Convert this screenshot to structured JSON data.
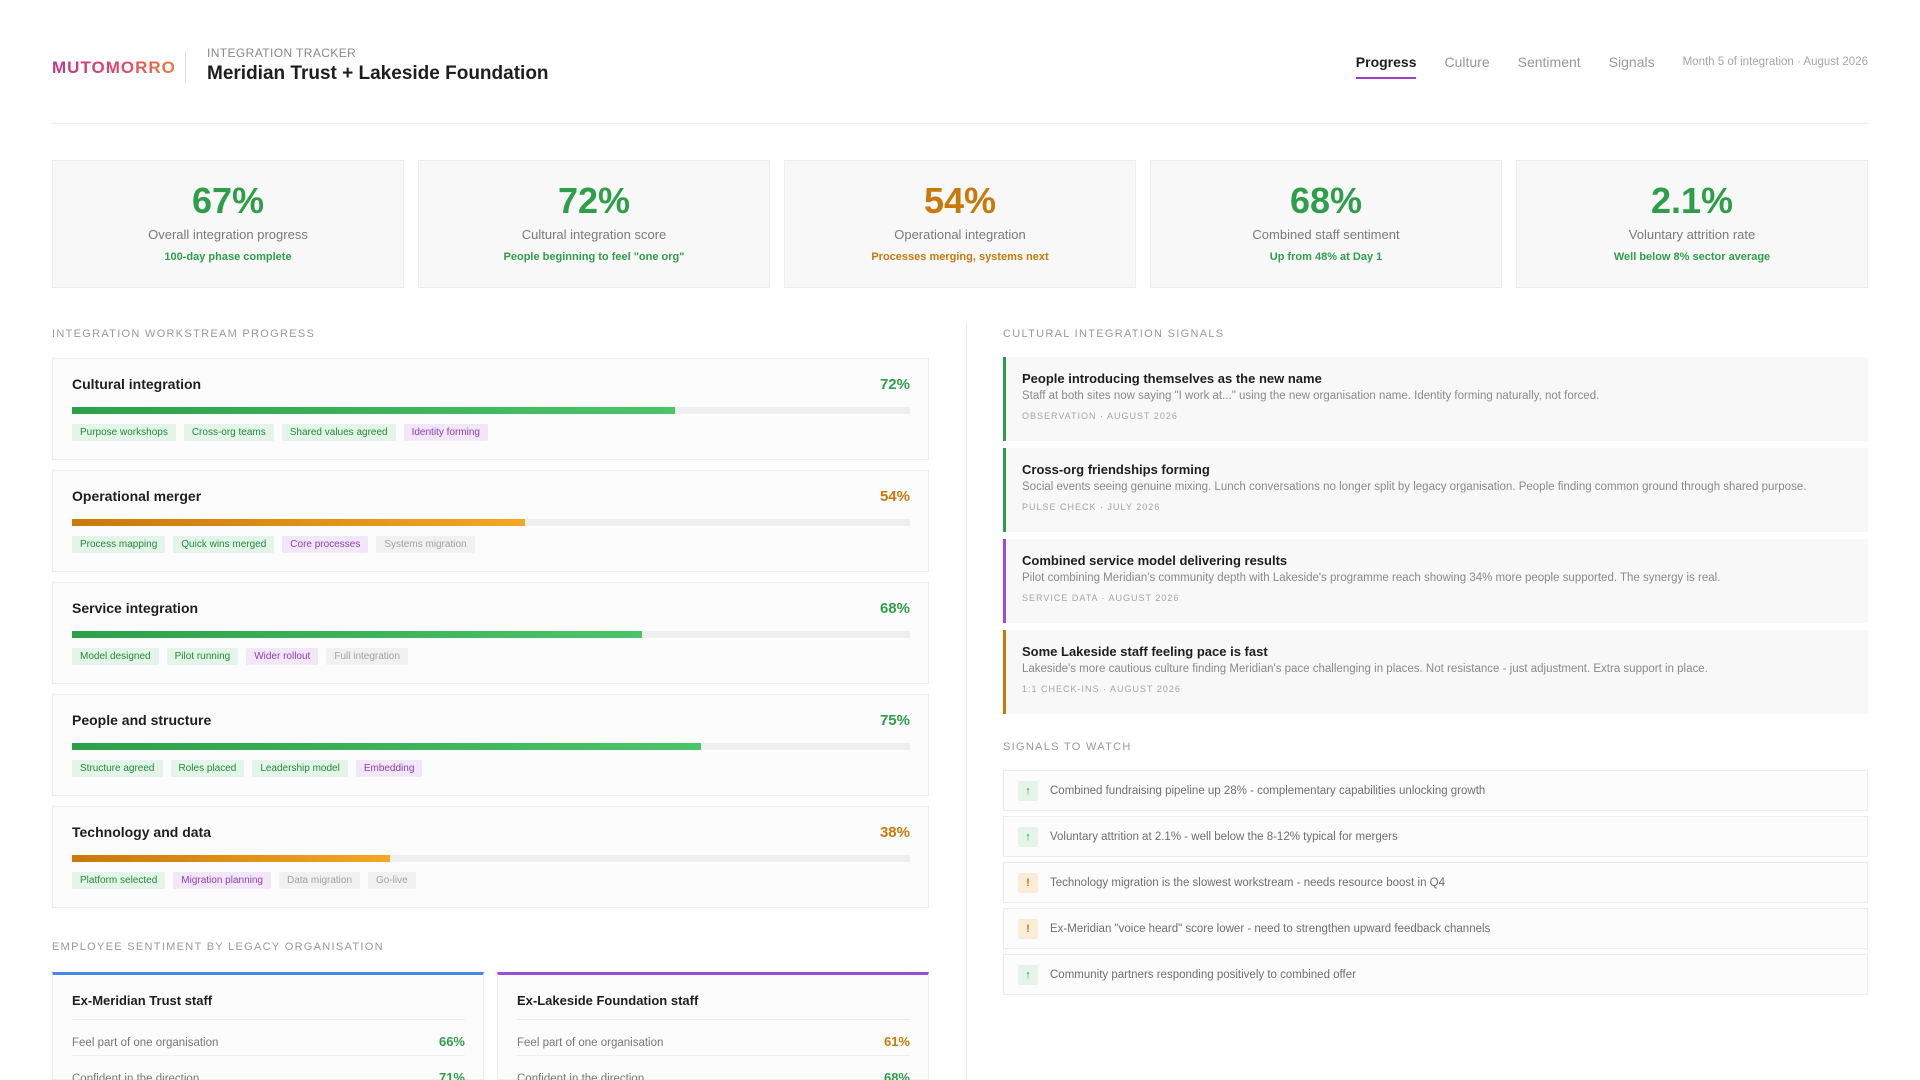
{
  "brand": "MUTOMORRO",
  "header": {
    "kicker": "INTEGRATION TRACKER",
    "title": "Meridian Trust + Lakeside Foundation",
    "meta": "Month 5 of integration · August 2026"
  },
  "nav": {
    "tabs": [
      "Progress",
      "Culture",
      "Sentiment",
      "Signals"
    ],
    "active": "Progress"
  },
  "colors": {
    "green": "#2f9e4a",
    "amber": "#c8790a",
    "purple": "#9b4dd6",
    "blue": "#4a86e8"
  },
  "kpis": [
    {
      "value": "67%",
      "label": "Overall integration progress",
      "note": "100-day phase complete",
      "tone": "green"
    },
    {
      "value": "72%",
      "label": "Cultural integration score",
      "note": "People beginning to feel \"one org\"",
      "tone": "green"
    },
    {
      "value": "54%",
      "label": "Operational integration",
      "note": "Processes merging, systems next",
      "tone": "amber"
    },
    {
      "value": "68%",
      "label": "Combined staff sentiment",
      "note": "Up from 48% at Day 1",
      "tone": "green"
    },
    {
      "value": "2.1%",
      "label": "Voluntary attrition rate",
      "note": "Well below 8% sector average",
      "tone": "green"
    }
  ],
  "workstreams": {
    "title": "INTEGRATION WORKSTREAM PROGRESS",
    "items": [
      {
        "name": "Cultural integration",
        "pct_label": "72%",
        "progress": 0.72,
        "tone": "green",
        "tags": [
          {
            "text": "Purpose workshops",
            "state": "done"
          },
          {
            "text": "Cross-org teams",
            "state": "done"
          },
          {
            "text": "Shared values agreed",
            "state": "done"
          },
          {
            "text": "Identity forming",
            "state": "active"
          }
        ]
      },
      {
        "name": "Operational merger",
        "pct_label": "54%",
        "progress": 0.54,
        "tone": "amber",
        "tags": [
          {
            "text": "Process mapping",
            "state": "done"
          },
          {
            "text": "Quick wins merged",
            "state": "done"
          },
          {
            "text": "Core processes",
            "state": "active"
          },
          {
            "text": "Systems migration",
            "state": "pending"
          }
        ]
      },
      {
        "name": "Service integration",
        "pct_label": "68%",
        "progress": 0.68,
        "tone": "green",
        "tags": [
          {
            "text": "Model designed",
            "state": "done"
          },
          {
            "text": "Pilot running",
            "state": "done"
          },
          {
            "text": "Wider rollout",
            "state": "active"
          },
          {
            "text": "Full integration",
            "state": "pending"
          }
        ]
      },
      {
        "name": "People and structure",
        "pct_label": "75%",
        "progress": 0.75,
        "tone": "green",
        "tags": [
          {
            "text": "Structure agreed",
            "state": "done"
          },
          {
            "text": "Roles placed",
            "state": "done"
          },
          {
            "text": "Leadership model",
            "state": "done"
          },
          {
            "text": "Embedding",
            "state": "active"
          }
        ]
      },
      {
        "name": "Technology and data",
        "pct_label": "38%",
        "progress": 0.38,
        "tone": "amber",
        "tags": [
          {
            "text": "Platform selected",
            "state": "done"
          },
          {
            "text": "Migration planning",
            "state": "active"
          },
          {
            "text": "Data migration",
            "state": "pending"
          },
          {
            "text": "Go-live",
            "state": "pending"
          }
        ]
      }
    ]
  },
  "sentiment": {
    "title": "EMPLOYEE SENTIMENT BY LEGACY ORGANISATION",
    "groups": [
      {
        "name": "Ex-Meridian Trust staff",
        "accent": "blue",
        "rows": [
          {
            "label": "Feel part of one organisation",
            "value": "66%",
            "tone": "green"
          },
          {
            "label": "Confident in the direction",
            "value": "71%",
            "tone": "green"
          }
        ]
      },
      {
        "name": "Ex-Lakeside Foundation staff",
        "accent": "purple",
        "rows": [
          {
            "label": "Feel part of one organisation",
            "value": "61%",
            "tone": "amber"
          },
          {
            "label": "Confident in the direction",
            "value": "68%",
            "tone": "green"
          }
        ]
      }
    ]
  },
  "signals": {
    "title": "CULTURAL INTEGRATION SIGNALS",
    "items": [
      {
        "title": "People introducing themselves as the new name",
        "body": "Staff at both sites now saying \"I work at...\" using the new organisation name. Identity forming naturally, not forced.",
        "meta": "OBSERVATION · AUGUST 2026",
        "tone": "green"
      },
      {
        "title": "Cross-org friendships forming",
        "body": "Social events seeing genuine mixing. Lunch conversations no longer split by legacy organisation. People finding common ground through shared purpose.",
        "meta": "PULSE CHECK · JULY 2026",
        "tone": "green"
      },
      {
        "title": "Combined service model delivering results",
        "body": "Pilot combining Meridian's community depth with Lakeside's programme reach showing 34% more people supported. The synergy is real.",
        "meta": "SERVICE DATA · AUGUST 2026",
        "tone": "purple"
      },
      {
        "title": "Some Lakeside staff feeling pace is fast",
        "body": "Lakeside's more cautious culture finding Meridian's pace challenging in places. Not resistance - just adjustment. Extra support in place.",
        "meta": "1:1 CHECK-INS · AUGUST 2026",
        "tone": "amber"
      }
    ]
  },
  "watch": {
    "title": "SIGNALS TO WATCH",
    "items": [
      {
        "icon": "up-arrow-icon",
        "glyph": "↑",
        "kind": "up",
        "text": "Combined fundraising pipeline up 28% - complementary capabilities unlocking growth"
      },
      {
        "icon": "up-arrow-icon",
        "glyph": "↑",
        "kind": "up",
        "text": "Voluntary attrition at 2.1% - well below the 8-12% typical for mergers"
      },
      {
        "icon": "warning-icon",
        "glyph": "!",
        "kind": "warn",
        "text": "Technology migration is the slowest workstream - needs resource boost in Q4"
      },
      {
        "icon": "warning-icon",
        "glyph": "!",
        "kind": "warn",
        "text": "Ex-Meridian \"voice heard\" score lower - need to strengthen upward feedback channels"
      },
      {
        "icon": "up-arrow-icon",
        "glyph": "↑",
        "kind": "up",
        "text": "Community partners responding positively to combined offer"
      }
    ]
  }
}
